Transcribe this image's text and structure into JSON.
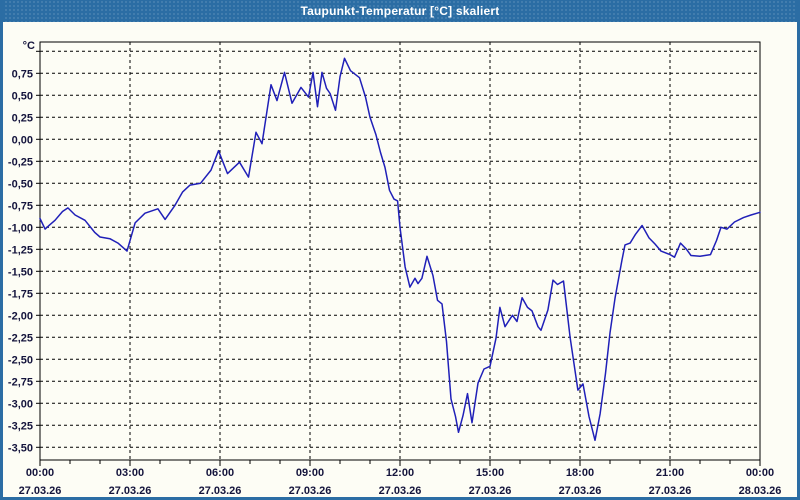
{
  "window": {
    "title": "Taupunkt-Temperatur [°C] skaliert",
    "titlebar_color": "#2b6da4",
    "border_color": "#2b6da4",
    "background_color": "#fdfdf5"
  },
  "chart_data": {
    "type": "line",
    "title": "Taupunkt-Temperatur [°C] skaliert",
    "unit_label": "°C",
    "line_color": "#2020b8",
    "grid": "dashed-black",
    "legend_position": "none",
    "ylim": [
      -3.5,
      1.0
    ],
    "xlabel": "",
    "ylabel": "°C",
    "yticks": [
      {
        "v": 1.0,
        "label": ""
      },
      {
        "v": 0.75,
        "label": "0,75"
      },
      {
        "v": 0.5,
        "label": "0,50"
      },
      {
        "v": 0.25,
        "label": "0,25"
      },
      {
        "v": 0.0,
        "label": "0,00"
      },
      {
        "v": -0.25,
        "label": "-0,25"
      },
      {
        "v": -0.5,
        "label": "-0,50"
      },
      {
        "v": -0.75,
        "label": "-0,75"
      },
      {
        "v": -1.0,
        "label": "-1,00"
      },
      {
        "v": -1.25,
        "label": "-1,25"
      },
      {
        "v": -1.5,
        "label": "-1,50"
      },
      {
        "v": -1.75,
        "label": "-1,75"
      },
      {
        "v": -2.0,
        "label": "-2,00"
      },
      {
        "v": -2.25,
        "label": "-2,25"
      },
      {
        "v": -2.5,
        "label": "-2,50"
      },
      {
        "v": -2.75,
        "label": "-2,75"
      },
      {
        "v": -3.0,
        "label": "-3,00"
      },
      {
        "v": -3.25,
        "label": "-3,25"
      },
      {
        "v": -3.5,
        "label": "-3,50"
      }
    ],
    "xlim_hours": [
      0,
      24
    ],
    "x_minor_every_hours": 1,
    "x_major_ticks": [
      {
        "h": 0,
        "time": "00:00",
        "date": "27.03.26"
      },
      {
        "h": 3,
        "time": "03:00",
        "date": "27.03.26"
      },
      {
        "h": 6,
        "time": "06:00",
        "date": "27.03.26"
      },
      {
        "h": 9,
        "time": "09:00",
        "date": "27.03.26"
      },
      {
        "h": 12,
        "time": "12:00",
        "date": "27.03.26"
      },
      {
        "h": 15,
        "time": "15:00",
        "date": "27.03.26"
      },
      {
        "h": 18,
        "time": "18:00",
        "date": "27.03.26"
      },
      {
        "h": 21,
        "time": "21:00",
        "date": "27.03.26"
      },
      {
        "h": 24,
        "time": "00:00",
        "date": "28.03.26"
      }
    ],
    "points": [
      [
        0.0,
        -0.9
      ],
      [
        0.17,
        -1.02
      ],
      [
        0.33,
        -0.97
      ],
      [
        0.5,
        -0.92
      ],
      [
        0.75,
        -0.82
      ],
      [
        0.93,
        -0.78
      ],
      [
        1.17,
        -0.86
      ],
      [
        1.5,
        -0.92
      ],
      [
        1.83,
        -1.06
      ],
      [
        2.0,
        -1.11
      ],
      [
        2.33,
        -1.13
      ],
      [
        2.6,
        -1.18
      ],
      [
        2.9,
        -1.27
      ],
      [
        3.17,
        -0.95
      ],
      [
        3.5,
        -0.84
      ],
      [
        3.93,
        -0.79
      ],
      [
        4.17,
        -0.91
      ],
      [
        4.5,
        -0.75
      ],
      [
        4.75,
        -0.6
      ],
      [
        5.0,
        -0.52
      ],
      [
        5.35,
        -0.5
      ],
      [
        5.7,
        -0.35
      ],
      [
        5.95,
        -0.13
      ],
      [
        6.25,
        -0.39
      ],
      [
        6.65,
        -0.26
      ],
      [
        6.95,
        -0.43
      ],
      [
        7.2,
        0.08
      ],
      [
        7.4,
        -0.05
      ],
      [
        7.7,
        0.62
      ],
      [
        7.9,
        0.44
      ],
      [
        8.15,
        0.76
      ],
      [
        8.4,
        0.41
      ],
      [
        8.7,
        0.59
      ],
      [
        8.95,
        0.48
      ],
      [
        9.1,
        0.76
      ],
      [
        9.25,
        0.37
      ],
      [
        9.4,
        0.76
      ],
      [
        9.55,
        0.58
      ],
      [
        9.67,
        0.52
      ],
      [
        9.85,
        0.33
      ],
      [
        10.0,
        0.71
      ],
      [
        10.15,
        0.92
      ],
      [
        10.35,
        0.78
      ],
      [
        10.65,
        0.7
      ],
      [
        10.85,
        0.48
      ],
      [
        11.0,
        0.25
      ],
      [
        11.2,
        0.05
      ],
      [
        11.35,
        -0.15
      ],
      [
        11.5,
        -0.32
      ],
      [
        11.65,
        -0.58
      ],
      [
        11.8,
        -0.68
      ],
      [
        11.92,
        -0.7
      ],
      [
        12.0,
        -1.0
      ],
      [
        12.17,
        -1.45
      ],
      [
        12.33,
        -1.68
      ],
      [
        12.5,
        -1.58
      ],
      [
        12.6,
        -1.64
      ],
      [
        12.73,
        -1.58
      ],
      [
        12.9,
        -1.33
      ],
      [
        13.1,
        -1.55
      ],
      [
        13.25,
        -1.83
      ],
      [
        13.4,
        -1.87
      ],
      [
        13.55,
        -2.3
      ],
      [
        13.7,
        -2.95
      ],
      [
        13.85,
        -3.15
      ],
      [
        13.95,
        -3.33
      ],
      [
        14.1,
        -3.14
      ],
      [
        14.25,
        -2.89
      ],
      [
        14.4,
        -3.22
      ],
      [
        14.6,
        -2.77
      ],
      [
        14.8,
        -2.61
      ],
      [
        15.0,
        -2.58
      ],
      [
        15.2,
        -2.26
      ],
      [
        15.33,
        -1.91
      ],
      [
        15.5,
        -2.13
      ],
      [
        15.67,
        -2.04
      ],
      [
        15.75,
        -2.0
      ],
      [
        15.9,
        -2.07
      ],
      [
        16.07,
        -1.8
      ],
      [
        16.25,
        -1.91
      ],
      [
        16.4,
        -1.95
      ],
      [
        16.6,
        -2.13
      ],
      [
        16.7,
        -2.17
      ],
      [
        16.93,
        -1.94
      ],
      [
        17.1,
        -1.6
      ],
      [
        17.25,
        -1.65
      ],
      [
        17.45,
        -1.61
      ],
      [
        17.67,
        -2.25
      ],
      [
        17.93,
        -2.85
      ],
      [
        18.1,
        -2.78
      ],
      [
        18.3,
        -3.15
      ],
      [
        18.5,
        -3.42
      ],
      [
        18.67,
        -3.12
      ],
      [
        18.85,
        -2.66
      ],
      [
        19.0,
        -2.2
      ],
      [
        19.17,
        -1.8
      ],
      [
        19.4,
        -1.37
      ],
      [
        19.5,
        -1.2
      ],
      [
        19.67,
        -1.18
      ],
      [
        19.85,
        -1.08
      ],
      [
        20.07,
        -0.98
      ],
      [
        20.3,
        -1.12
      ],
      [
        20.5,
        -1.19
      ],
      [
        20.7,
        -1.27
      ],
      [
        21.0,
        -1.31
      ],
      [
        21.15,
        -1.34
      ],
      [
        21.35,
        -1.18
      ],
      [
        21.55,
        -1.25
      ],
      [
        21.7,
        -1.32
      ],
      [
        22.0,
        -1.33
      ],
      [
        22.35,
        -1.31
      ],
      [
        22.55,
        -1.15
      ],
      [
        22.7,
        -1.0
      ],
      [
        22.9,
        -1.02
      ],
      [
        23.15,
        -0.94
      ],
      [
        23.45,
        -0.89
      ],
      [
        23.7,
        -0.86
      ],
      [
        24.0,
        -0.83
      ]
    ]
  }
}
